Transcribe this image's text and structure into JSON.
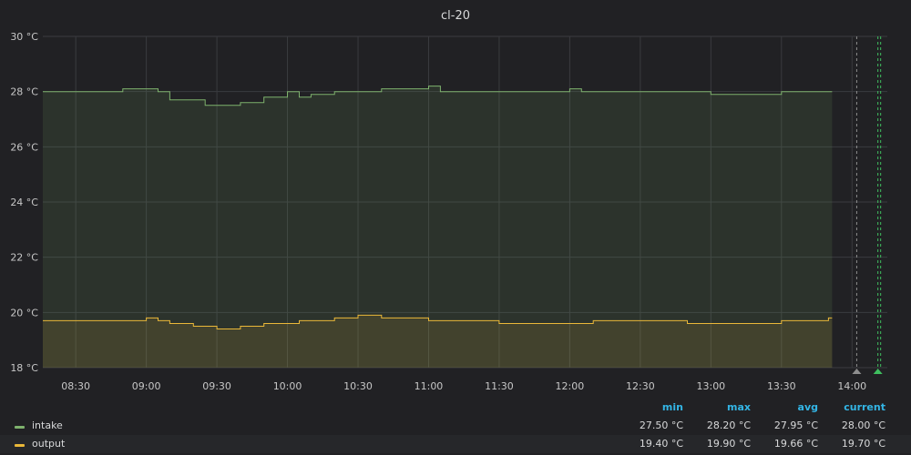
{
  "panel": {
    "title": "cl-20"
  },
  "chart_data": {
    "type": "area",
    "title": "cl-20",
    "xlabel": "",
    "ylabel": "",
    "ylim": [
      18,
      30
    ],
    "y_unit": "°C",
    "y_ticks": [
      "18 °C",
      "20 °C",
      "22 °C",
      "24 °C",
      "26 °C",
      "28 °C",
      "30 °C"
    ],
    "x_range": [
      "08:16",
      "14:15"
    ],
    "x_ticks": [
      "08:30",
      "09:00",
      "09:30",
      "10:00",
      "10:30",
      "11:00",
      "11:30",
      "12:00",
      "12:30",
      "13:00",
      "13:30",
      "14:00"
    ],
    "grid": true,
    "legend_position": "bottom",
    "x": [
      "08:16",
      "08:30",
      "08:45",
      "08:50",
      "09:00",
      "09:05",
      "09:10",
      "09:20",
      "09:25",
      "09:30",
      "09:40",
      "09:50",
      "10:00",
      "10:05",
      "10:10",
      "10:20",
      "10:30",
      "10:40",
      "11:00",
      "11:05",
      "11:10",
      "11:30",
      "12:00",
      "12:05",
      "12:10",
      "12:30",
      "12:50",
      "13:00",
      "13:20",
      "13:30",
      "13:45",
      "13:50"
    ],
    "series": [
      {
        "name": "intake",
        "color": "#7eb26d",
        "values": [
          28.0,
          28.0,
          28.0,
          28.1,
          28.1,
          28.0,
          27.7,
          27.7,
          27.5,
          27.5,
          27.6,
          27.8,
          28.0,
          27.8,
          27.9,
          28.0,
          28.0,
          28.1,
          28.2,
          28.0,
          28.0,
          28.0,
          28.1,
          28.0,
          28.0,
          28.0,
          28.0,
          27.9,
          27.9,
          28.0,
          28.0,
          28.0
        ]
      },
      {
        "name": "output",
        "color": "#eab839",
        "values": [
          19.7,
          19.7,
          19.7,
          19.7,
          19.8,
          19.7,
          19.6,
          19.5,
          19.5,
          19.4,
          19.5,
          19.6,
          19.6,
          19.7,
          19.7,
          19.8,
          19.9,
          19.8,
          19.7,
          19.7,
          19.7,
          19.6,
          19.6,
          19.6,
          19.7,
          19.7,
          19.6,
          19.6,
          19.6,
          19.7,
          19.7,
          19.8
        ]
      }
    ],
    "annotations": [
      {
        "time": "14:02",
        "color": "#8e8e8e"
      },
      {
        "time": "14:11",
        "color": "#3fbf5f"
      }
    ]
  },
  "legend": {
    "headers": {
      "min": "min",
      "max": "max",
      "avg": "avg",
      "current": "current"
    },
    "rows": [
      {
        "name": "intake",
        "color": "#7eb26d",
        "min": "27.50 °C",
        "max": "28.20 °C",
        "avg": "27.95 °C",
        "current": "28.00 °C"
      },
      {
        "name": "output",
        "color": "#eab839",
        "min": "19.40 °C",
        "max": "19.90 °C",
        "avg": "19.66 °C",
        "current": "19.70 °C"
      }
    ]
  }
}
